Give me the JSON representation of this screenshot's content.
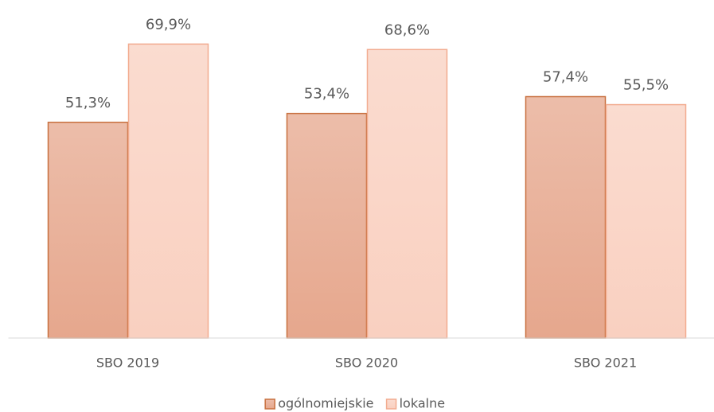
{
  "chart_data": {
    "type": "bar",
    "categories": [
      "SBO 2019",
      "SBO 2020",
      "SBO 2021"
    ],
    "series": [
      {
        "name": "ogólnomiejskie",
        "color": "#e6a78d",
        "border_color": "#c8703f",
        "values": [
          51.3,
          53.4,
          57.4
        ],
        "value_labels": [
          "51,3%",
          "53,4%",
          "57,4%"
        ]
      },
      {
        "name": "lokalne",
        "color": "#f9d0c0",
        "border_color": "#f2ab8f",
        "values": [
          69.9,
          68.6,
          55.5
        ],
        "value_labels": [
          "69,9%",
          "68,6%",
          "55,5%"
        ]
      }
    ],
    "ylim": [
      0,
      80
    ],
    "grid": false,
    "legend": "bottom"
  }
}
